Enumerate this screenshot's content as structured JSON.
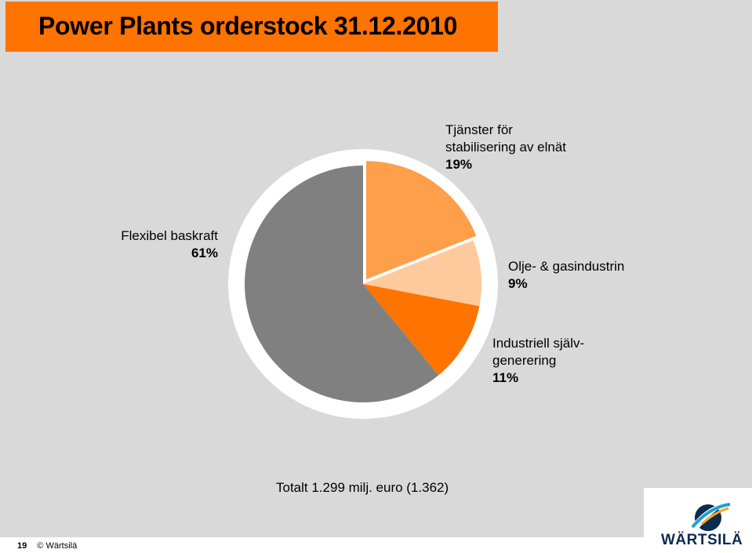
{
  "title": "Power Plants orderstock 31.12.2010",
  "total": "Totalt 1.299 milj. euro (1.362)",
  "footer": {
    "page": "19",
    "copyright": "© Wärtsilä"
  },
  "logo": {
    "text": "WÄRTSILÄ"
  },
  "colors": {
    "title_bar": "#ff7300",
    "background": "#d9d9d9",
    "ring": "#ffffff"
  },
  "labels": {
    "tjanster": {
      "line1": "Tjänster för",
      "line2": "stabilisering av elnät",
      "pct": "19%"
    },
    "olje": {
      "line1": "Olje- & gasindustrin",
      "pct": "9%"
    },
    "industriell": {
      "line1": "Industriell själv-",
      "line2": "generering",
      "pct": "11%"
    },
    "flexibel": {
      "line1": "Flexibel baskraft",
      "pct": "61%"
    }
  },
  "chart_data": {
    "type": "pie",
    "title": "",
    "slices": [
      {
        "label": "Tjänster för stabilisering av elnät",
        "value": 19,
        "color": "#ff9f4a",
        "explode": true
      },
      {
        "label": "Olje- & gasindustrin",
        "value": 9,
        "color": "#ffc99e",
        "explode": false
      },
      {
        "label": "Industriell självgenerering",
        "value": 11,
        "color": "#ff7300",
        "explode": false
      },
      {
        "label": "Flexibel baskraft",
        "value": 61,
        "color": "#808080",
        "explode": false
      }
    ]
  }
}
